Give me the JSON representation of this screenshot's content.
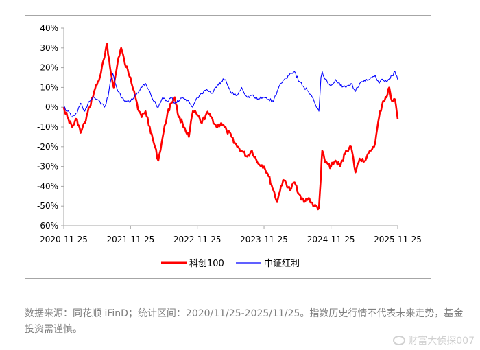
{
  "chart_data": {
    "type": "line",
    "y_ticks": [
      "40%",
      "30%",
      "20%",
      "10%",
      "0%",
      "-10%",
      "-20%",
      "-30%",
      "-40%",
      "-50%",
      "-60%"
    ],
    "x_ticks": [
      "2020-11-25",
      "2021-11-25",
      "2022-11-25",
      "2023-11-25",
      "2024-11-25",
      "2025-11-25"
    ],
    "ylim": [
      -60,
      40
    ],
    "x_range": [
      "2020-11-25",
      "2025-11-25"
    ],
    "grid": false,
    "legend_position": "bottom",
    "series": [
      {
        "name": "科创100",
        "color": "#ff0000",
        "points": [
          [
            "2020-11-25",
            0
          ],
          [
            "2020-12-15",
            -5
          ],
          [
            "2021-01-10",
            -10
          ],
          [
            "2021-02-05",
            -6
          ],
          [
            "2021-02-25",
            -13
          ],
          [
            "2021-03-20",
            -8
          ],
          [
            "2021-04-15",
            0
          ],
          [
            "2021-05-10",
            8
          ],
          [
            "2021-06-10",
            15
          ],
          [
            "2021-07-05",
            25
          ],
          [
            "2021-07-20",
            32
          ],
          [
            "2021-08-05",
            20
          ],
          [
            "2021-08-25",
            10
          ],
          [
            "2021-09-20",
            25
          ],
          [
            "2021-10-05",
            30
          ],
          [
            "2021-10-25",
            22
          ],
          [
            "2021-11-25",
            15
          ],
          [
            "2021-12-15",
            8
          ],
          [
            "2022-01-10",
            -2
          ],
          [
            "2022-01-25",
            -5
          ],
          [
            "2022-02-15",
            -2
          ],
          [
            "2022-03-10",
            -10
          ],
          [
            "2022-04-01",
            -18
          ],
          [
            "2022-04-26",
            -27
          ],
          [
            "2022-05-20",
            -15
          ],
          [
            "2022-06-15",
            -3
          ],
          [
            "2022-07-05",
            2
          ],
          [
            "2022-07-25",
            5
          ],
          [
            "2022-08-15",
            -5
          ],
          [
            "2022-09-05",
            -8
          ],
          [
            "2022-10-10",
            -15
          ],
          [
            "2022-11-01",
            -2
          ],
          [
            "2022-11-25",
            -4
          ],
          [
            "2022-12-20",
            -8
          ],
          [
            "2023-01-15",
            -3
          ],
          [
            "2023-02-10",
            -5
          ],
          [
            "2023-03-10",
            -10
          ],
          [
            "2023-04-05",
            -8
          ],
          [
            "2023-05-05",
            -12
          ],
          [
            "2023-06-01",
            -15
          ],
          [
            "2023-07-01",
            -20
          ],
          [
            "2023-07-25",
            -22
          ],
          [
            "2023-08-25",
            -25
          ],
          [
            "2023-09-20",
            -22
          ],
          [
            "2023-10-20",
            -28
          ],
          [
            "2023-11-25",
            -30
          ],
          [
            "2023-12-20",
            -35
          ],
          [
            "2024-01-15",
            -42
          ],
          [
            "2024-02-05",
            -48
          ],
          [
            "2024-02-25",
            -40
          ],
          [
            "2024-03-15",
            -37
          ],
          [
            "2024-04-15",
            -42
          ],
          [
            "2024-05-10",
            -38
          ],
          [
            "2024-06-05",
            -44
          ],
          [
            "2024-07-01",
            -48
          ],
          [
            "2024-07-25",
            -46
          ],
          [
            "2024-08-25",
            -50
          ],
          [
            "2024-09-20",
            -51
          ],
          [
            "2024-10-01",
            -35
          ],
          [
            "2024-10-08",
            -22
          ],
          [
            "2024-10-25",
            -28
          ],
          [
            "2024-11-25",
            -30
          ],
          [
            "2024-12-20",
            -27
          ],
          [
            "2025-01-15",
            -30
          ],
          [
            "2025-02-15",
            -22
          ],
          [
            "2025-03-15",
            -20
          ],
          [
            "2025-04-08",
            -33
          ],
          [
            "2025-05-01",
            -26
          ],
          [
            "2025-06-01",
            -27
          ],
          [
            "2025-07-01",
            -22
          ],
          [
            "2025-07-25",
            -18
          ],
          [
            "2025-08-15",
            -5
          ],
          [
            "2025-09-05",
            3
          ],
          [
            "2025-09-25",
            5
          ],
          [
            "2025-10-10",
            10
          ],
          [
            "2025-10-25",
            3
          ],
          [
            "2025-11-10",
            4
          ],
          [
            "2025-11-25",
            -6
          ]
        ]
      },
      {
        "name": "中证红利",
        "color": "#0000ff",
        "points": [
          [
            "2020-11-25",
            0
          ],
          [
            "2020-12-15",
            -2
          ],
          [
            "2021-01-10",
            -5
          ],
          [
            "2021-02-05",
            -3
          ],
          [
            "2021-02-25",
            2
          ],
          [
            "2021-03-20",
            -2
          ],
          [
            "2021-04-15",
            3
          ],
          [
            "2021-05-10",
            5
          ],
          [
            "2021-06-10",
            3
          ],
          [
            "2021-07-05",
            0
          ],
          [
            "2021-07-25",
            5
          ],
          [
            "2021-08-05",
            12
          ],
          [
            "2021-08-20",
            17
          ],
          [
            "2021-09-10",
            10
          ],
          [
            "2021-10-05",
            5
          ],
          [
            "2021-10-25",
            3
          ],
          [
            "2021-11-25",
            3
          ],
          [
            "2021-12-15",
            5
          ],
          [
            "2022-01-10",
            8
          ],
          [
            "2022-01-25",
            10
          ],
          [
            "2022-02-15",
            12
          ],
          [
            "2022-03-10",
            8
          ],
          [
            "2022-04-01",
            3
          ],
          [
            "2022-04-26",
            0
          ],
          [
            "2022-05-20",
            5
          ],
          [
            "2022-06-15",
            3
          ],
          [
            "2022-07-05",
            5
          ],
          [
            "2022-07-25",
            2
          ],
          [
            "2022-08-15",
            3
          ],
          [
            "2022-09-05",
            5
          ],
          [
            "2022-10-10",
            3
          ],
          [
            "2022-10-31",
            0
          ],
          [
            "2022-11-25",
            5
          ],
          [
            "2022-12-20",
            7
          ],
          [
            "2023-01-15",
            9
          ],
          [
            "2023-02-10",
            7
          ],
          [
            "2023-03-10",
            10
          ],
          [
            "2023-04-05",
            13
          ],
          [
            "2023-04-25",
            14
          ],
          [
            "2023-05-15",
            10
          ],
          [
            "2023-06-01",
            7
          ],
          [
            "2023-07-01",
            6
          ],
          [
            "2023-07-25",
            10
          ],
          [
            "2023-08-25",
            5
          ],
          [
            "2023-09-20",
            6
          ],
          [
            "2023-10-20",
            4
          ],
          [
            "2023-11-25",
            5
          ],
          [
            "2023-12-20",
            4
          ],
          [
            "2024-01-15",
            3
          ],
          [
            "2024-02-05",
            8
          ],
          [
            "2024-02-25",
            12
          ],
          [
            "2024-03-15",
            14
          ],
          [
            "2024-04-15",
            17
          ],
          [
            "2024-05-10",
            18
          ],
          [
            "2024-06-05",
            13
          ],
          [
            "2024-07-01",
            10
          ],
          [
            "2024-07-25",
            8
          ],
          [
            "2024-08-25",
            3
          ],
          [
            "2024-09-20",
            -2
          ],
          [
            "2024-10-01",
            15
          ],
          [
            "2024-10-08",
            18
          ],
          [
            "2024-10-25",
            14
          ],
          [
            "2024-11-25",
            11
          ],
          [
            "2024-12-20",
            14
          ],
          [
            "2025-01-15",
            11
          ],
          [
            "2025-02-15",
            10
          ],
          [
            "2025-03-15",
            12
          ],
          [
            "2025-04-08",
            8
          ],
          [
            "2025-05-01",
            12
          ],
          [
            "2025-06-01",
            13
          ],
          [
            "2025-07-01",
            15
          ],
          [
            "2025-07-25",
            16
          ],
          [
            "2025-08-15",
            12
          ],
          [
            "2025-09-05",
            14
          ],
          [
            "2025-09-25",
            13
          ],
          [
            "2025-10-10",
            14
          ],
          [
            "2025-10-25",
            16
          ],
          [
            "2025-11-10",
            18
          ],
          [
            "2025-11-25",
            14
          ]
        ]
      }
    ]
  },
  "footnote": "数据来源：同花顺 iFinD；统计区间：2020/11/25-2025/11/25。指数历史行情不代表未来走势，基金投资需谨慎。",
  "watermark": "财富大侦探007"
}
